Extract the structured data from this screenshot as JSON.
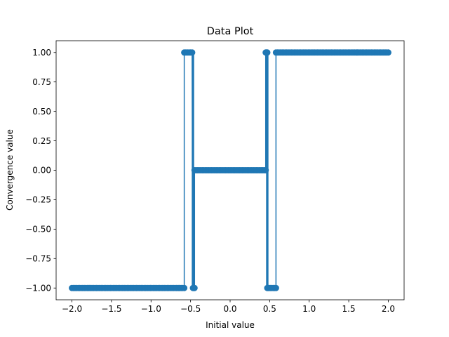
{
  "chart_data": {
    "type": "line",
    "title": "Data Plot",
    "xlabel": "Initial value",
    "ylabel": "Convergence value",
    "xlim": [
      -2.2,
      2.2
    ],
    "ylim": [
      -1.1,
      1.1
    ],
    "grid": false,
    "legend": "none",
    "x_ticks": [
      -2.0,
      -1.5,
      -1.0,
      -0.5,
      0.0,
      0.5,
      1.0,
      1.5,
      2.0
    ],
    "x_tick_labels": [
      "−2.0",
      "−1.5",
      "−1.0",
      "−0.5",
      "0.0",
      "0.5",
      "1.0",
      "1.5",
      "2.0"
    ],
    "y_ticks": [
      -1.0,
      -0.75,
      -0.5,
      -0.25,
      0.0,
      0.25,
      0.5,
      0.75,
      1.0
    ],
    "y_tick_labels": [
      "−1.00",
      "−0.75",
      "−0.50",
      "−0.25",
      "0.00",
      "0.25",
      "0.50",
      "0.75",
      "1.00"
    ],
    "series": [
      {
        "color": "#1f77b4",
        "marker": "circle",
        "x_range": [
          -2.0,
          2.0
        ],
        "segments": [
          {
            "x_from": -2.0,
            "x_to": -0.58,
            "y": -1.0
          },
          {
            "x_from": -0.58,
            "x_to": -0.48,
            "y": 1.0
          },
          {
            "x_from": -0.47,
            "x_to": -0.45,
            "y": -1.0
          },
          {
            "x_from": -0.45,
            "x_to": 0.45,
            "y": 0.0
          },
          {
            "x_from": 0.45,
            "x_to": 0.47,
            "y": 1.0
          },
          {
            "x_from": 0.47,
            "x_to": 0.58,
            "y": -1.0
          },
          {
            "x_from": 0.58,
            "x_to": 2.0,
            "y": 1.0
          }
        ],
        "oscillation_bands": [
          {
            "x_from": -0.485,
            "x_to": -0.455
          },
          {
            "x_from": 0.455,
            "x_to": 0.485
          }
        ]
      }
    ]
  }
}
